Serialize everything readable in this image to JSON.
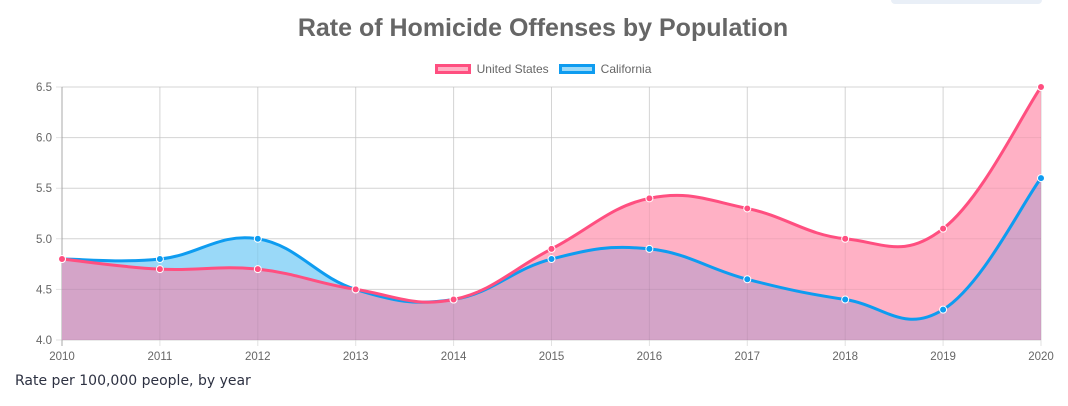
{
  "chart_data": {
    "type": "area",
    "title": "Rate of Homicide Offenses by Population",
    "caption": "Rate per 100,000 people, by year",
    "xlabel": "",
    "ylabel": "",
    "x": [
      "2010",
      "2011",
      "2012",
      "2013",
      "2014",
      "2015",
      "2016",
      "2017",
      "2018",
      "2019",
      "2020"
    ],
    "ylim": [
      4.0,
      6.5
    ],
    "yticks": [
      "4.0",
      "4.5",
      "5.0",
      "5.5",
      "6.0",
      "6.5"
    ],
    "grid": true,
    "legend_position": "top-center",
    "series": [
      {
        "name": "United States",
        "values": [
          4.8,
          4.7,
          4.7,
          4.5,
          4.4,
          4.9,
          5.4,
          5.3,
          5.0,
          5.1,
          6.5
        ],
        "line_color": "#ff4f80",
        "fill_color": "#ffb1c5"
      },
      {
        "name": "California",
        "values": [
          4.8,
          4.8,
          5.0,
          4.5,
          4.4,
          4.8,
          4.9,
          4.6,
          4.4,
          4.3,
          5.6
        ],
        "line_color": "#0e9cf0",
        "fill_color": "#9ad9f8"
      }
    ]
  }
}
